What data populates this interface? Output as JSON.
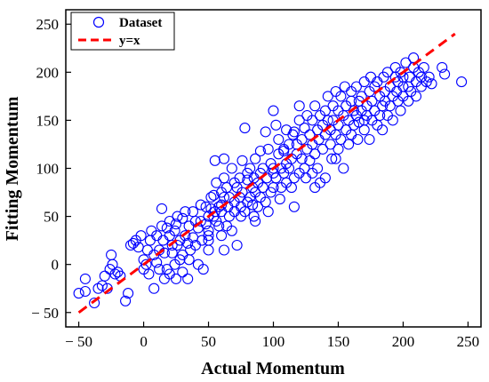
{
  "chart_data": {
    "type": "scatter",
    "title": "",
    "xlabel": "Actual Momentum",
    "ylabel": "Fitting Momentum",
    "xlim": [
      -60,
      260
    ],
    "ylim": [
      -65,
      265
    ],
    "xticks": [
      -50,
      0,
      50,
      100,
      150,
      200,
      250
    ],
    "yticks": [
      -50,
      0,
      50,
      100,
      150,
      200,
      250
    ],
    "xtick_labels": [
      "− 50",
      "0",
      "50",
      "100",
      "150",
      "200",
      "250"
    ],
    "ytick_labels": [
      "− 50",
      "0",
      "50",
      "100",
      "150",
      "200",
      "250"
    ],
    "grid": false,
    "legend_position": "top-left",
    "colors": {
      "dataset": "#0000ff",
      "fit_line": "#ff0000"
    },
    "series": [
      {
        "name": "Dataset",
        "marker": "open-circle",
        "points": [
          [
            -50,
            -30
          ],
          [
            -45,
            -28
          ],
          [
            -45,
            -15
          ],
          [
            -38,
            -40
          ],
          [
            -35,
            -25
          ],
          [
            -32,
            -22
          ],
          [
            -30,
            -12
          ],
          [
            -28,
            -25
          ],
          [
            -26,
            -5
          ],
          [
            -25,
            10
          ],
          [
            -24,
            0
          ],
          [
            -22,
            -10
          ],
          [
            -20,
            -8
          ],
          [
            -18,
            -12
          ],
          [
            -14,
            -38
          ],
          [
            -12,
            -30
          ],
          [
            -10,
            20
          ],
          [
            -8,
            22
          ],
          [
            -6,
            25
          ],
          [
            -4,
            18
          ],
          [
            -2,
            30
          ],
          [
            0,
            5
          ],
          [
            0,
            -5
          ],
          [
            2,
            0
          ],
          [
            3,
            15
          ],
          [
            4,
            -10
          ],
          [
            5,
            25
          ],
          [
            6,
            35
          ],
          [
            8,
            10
          ],
          [
            8,
            -25
          ],
          [
            10,
            30
          ],
          [
            10,
            2
          ],
          [
            12,
            15
          ],
          [
            12,
            -5
          ],
          [
            14,
            40
          ],
          [
            14,
            58
          ],
          [
            15,
            25
          ],
          [
            16,
            12
          ],
          [
            16,
            -15
          ],
          [
            18,
            38
          ],
          [
            18,
            -5
          ],
          [
            20,
            30
          ],
          [
            20,
            45
          ],
          [
            20,
            -10
          ],
          [
            22,
            12
          ],
          [
            22,
            20
          ],
          [
            24,
            0
          ],
          [
            24,
            35
          ],
          [
            25,
            -15
          ],
          [
            25,
            42
          ],
          [
            26,
            50
          ],
          [
            26,
            20
          ],
          [
            28,
            5
          ],
          [
            28,
            25
          ],
          [
            30,
            48
          ],
          [
            30,
            10
          ],
          [
            30,
            -8
          ],
          [
            32,
            30
          ],
          [
            32,
            55
          ],
          [
            34,
            22
          ],
          [
            34,
            -15
          ],
          [
            35,
            40
          ],
          [
            35,
            5
          ],
          [
            36,
            15
          ],
          [
            38,
            55
          ],
          [
            38,
            28
          ],
          [
            40,
            45
          ],
          [
            40,
            20
          ],
          [
            42,
            38
          ],
          [
            42,
            0
          ],
          [
            44,
            45
          ],
          [
            44,
            62
          ],
          [
            45,
            25
          ],
          [
            46,
            -5
          ],
          [
            48,
            42
          ],
          [
            48,
            60
          ],
          [
            50,
            50
          ],
          [
            50,
            35
          ],
          [
            50,
            25
          ],
          [
            50,
            30
          ],
          [
            50,
            15
          ],
          [
            52,
            70
          ],
          [
            52,
            58
          ],
          [
            54,
            72
          ],
          [
            54,
            50
          ],
          [
            55,
            108
          ],
          [
            55,
            55
          ],
          [
            56,
            45
          ],
          [
            56,
            85
          ],
          [
            58,
            60
          ],
          [
            58,
            40
          ],
          [
            60,
            55
          ],
          [
            60,
            75
          ],
          [
            60,
            30
          ],
          [
            60,
            62
          ],
          [
            62,
            90
          ],
          [
            62,
            70
          ],
          [
            62,
            15
          ],
          [
            64,
            40
          ],
          [
            64,
            80
          ],
          [
            65,
            60
          ],
          [
            66,
            70
          ],
          [
            66,
            50
          ],
          [
            68,
            100
          ],
          [
            68,
            35
          ],
          [
            70,
            55
          ],
          [
            70,
            85
          ],
          [
            70,
            65
          ],
          [
            72,
            80
          ],
          [
            72,
            20
          ],
          [
            74,
            70
          ],
          [
            74,
            90
          ],
          [
            75,
            50
          ],
          [
            75,
            60
          ],
          [
            76,
            75
          ],
          [
            76,
            108
          ],
          [
            78,
            55
          ],
          [
            78,
            142
          ],
          [
            80,
            88
          ],
          [
            80,
            65
          ],
          [
            80,
            95
          ],
          [
            82,
            70
          ],
          [
            82,
            100
          ],
          [
            84,
            80
          ],
          [
            84,
            62
          ],
          [
            85,
            90
          ],
          [
            85,
            50
          ],
          [
            86,
            110
          ],
          [
            86,
            75
          ],
          [
            88,
            85
          ],
          [
            88,
            60
          ],
          [
            90,
            95
          ],
          [
            90,
            70
          ],
          [
            90,
            118
          ],
          [
            92,
            80
          ],
          [
            92,
            100
          ],
          [
            94,
            65
          ],
          [
            95,
            90
          ],
          [
            96,
            120
          ],
          [
            96,
            55
          ],
          [
            98,
            75
          ],
          [
            98,
            105
          ],
          [
            100,
            80
          ],
          [
            100,
            100
          ],
          [
            100,
            160
          ],
          [
            100,
            95
          ],
          [
            102,
            90
          ],
          [
            102,
            145
          ],
          [
            104,
            115
          ],
          [
            104,
            130
          ],
          [
            105,
            68
          ],
          [
            106,
            100
          ],
          [
            106,
            80
          ],
          [
            108,
            120
          ],
          [
            108,
            95
          ],
          [
            110,
            105
          ],
          [
            110,
            85
          ],
          [
            110,
            140
          ],
          [
            112,
            125
          ],
          [
            112,
            100
          ],
          [
            114,
            110
          ],
          [
            114,
            80
          ],
          [
            115,
            135
          ],
          [
            116,
            90
          ],
          [
            116,
            60
          ],
          [
            118,
            125
          ],
          [
            118,
            115
          ],
          [
            120,
            95
          ],
          [
            120,
            150
          ],
          [
            120,
            165
          ],
          [
            122,
            110
          ],
          [
            122,
            130
          ],
          [
            124,
            100
          ],
          [
            124,
            142
          ],
          [
            125,
            90
          ],
          [
            126,
            120
          ],
          [
            126,
            155
          ],
          [
            128,
            108
          ],
          [
            128,
            135
          ],
          [
            130,
            150
          ],
          [
            130,
            125
          ],
          [
            130,
            95
          ],
          [
            132,
            115
          ],
          [
            132,
            165
          ],
          [
            134,
            140
          ],
          [
            134,
            100
          ],
          [
            135,
            130
          ],
          [
            136,
            155
          ],
          [
            136,
            85
          ],
          [
            138,
            145
          ],
          [
            138,
            120
          ],
          [
            140,
            160
          ],
          [
            140,
            135
          ],
          [
            140,
            90
          ],
          [
            142,
            150
          ],
          [
            142,
            175
          ],
          [
            144,
            125
          ],
          [
            144,
            140
          ],
          [
            145,
            110
          ],
          [
            146,
            165
          ],
          [
            146,
            150
          ],
          [
            148,
            135
          ],
          [
            148,
            180
          ],
          [
            150,
            145
          ],
          [
            150,
            160
          ],
          [
            150,
            120
          ],
          [
            152,
            175
          ],
          [
            152,
            130
          ],
          [
            154,
            155
          ],
          [
            154,
            100
          ],
          [
            155,
            185
          ],
          [
            156,
            140
          ],
          [
            156,
            165
          ],
          [
            158,
            150
          ],
          [
            158,
            125
          ],
          [
            160,
            170
          ],
          [
            160,
            135
          ],
          [
            160,
            180
          ],
          [
            162,
            160
          ],
          [
            162,
            145
          ],
          [
            164,
            185
          ],
          [
            164,
            155
          ],
          [
            165,
            130
          ],
          [
            166,
            170
          ],
          [
            166,
            148
          ],
          [
            168,
            160
          ],
          [
            168,
            175
          ],
          [
            170,
            150
          ],
          [
            170,
            140
          ],
          [
            170,
            190
          ],
          [
            172,
            165
          ],
          [
            172,
            155
          ],
          [
            174,
            180
          ],
          [
            174,
            130
          ],
          [
            175,
            195
          ],
          [
            176,
            170
          ],
          [
            176,
            150
          ],
          [
            178,
            185
          ],
          [
            178,
            160
          ],
          [
            180,
            145
          ],
          [
            180,
            190
          ],
          [
            182,
            175
          ],
          [
            182,
            155
          ],
          [
            184,
            165
          ],
          [
            184,
            140
          ],
          [
            185,
            195
          ],
          [
            186,
            180
          ],
          [
            186,
            170
          ],
          [
            188,
            155
          ],
          [
            188,
            200
          ],
          [
            190,
            185
          ],
          [
            190,
            165
          ],
          [
            192,
            175
          ],
          [
            192,
            150
          ],
          [
            194,
            195
          ],
          [
            194,
            205
          ],
          [
            195,
            180
          ],
          [
            196,
            170
          ],
          [
            196,
            190
          ],
          [
            198,
            200
          ],
          [
            198,
            160
          ],
          [
            200,
            185
          ],
          [
            200,
            195
          ],
          [
            200,
            175
          ],
          [
            202,
            210
          ],
          [
            204,
            185
          ],
          [
            204,
            170
          ],
          [
            205,
            195
          ],
          [
            206,
            180
          ],
          [
            208,
            205
          ],
          [
            208,
            215
          ],
          [
            210,
            190
          ],
          [
            210,
            175
          ],
          [
            212,
            200
          ],
          [
            214,
            185
          ],
          [
            214,
            195
          ],
          [
            216,
            205
          ],
          [
            218,
            190
          ],
          [
            220,
            195
          ],
          [
            222,
            188
          ],
          [
            230,
            205
          ],
          [
            232,
            198
          ],
          [
            245,
            190
          ],
          [
            62,
            110
          ],
          [
            108,
            118
          ],
          [
            132,
            80
          ],
          [
            148,
            110
          ],
          [
            86,
            45
          ],
          [
            94,
            138
          ],
          [
            116,
            138
          ]
        ]
      },
      {
        "name": "y=x",
        "line": "dashed",
        "points": [
          [
            -50,
            -50
          ],
          [
            240,
            240
          ]
        ]
      }
    ]
  }
}
